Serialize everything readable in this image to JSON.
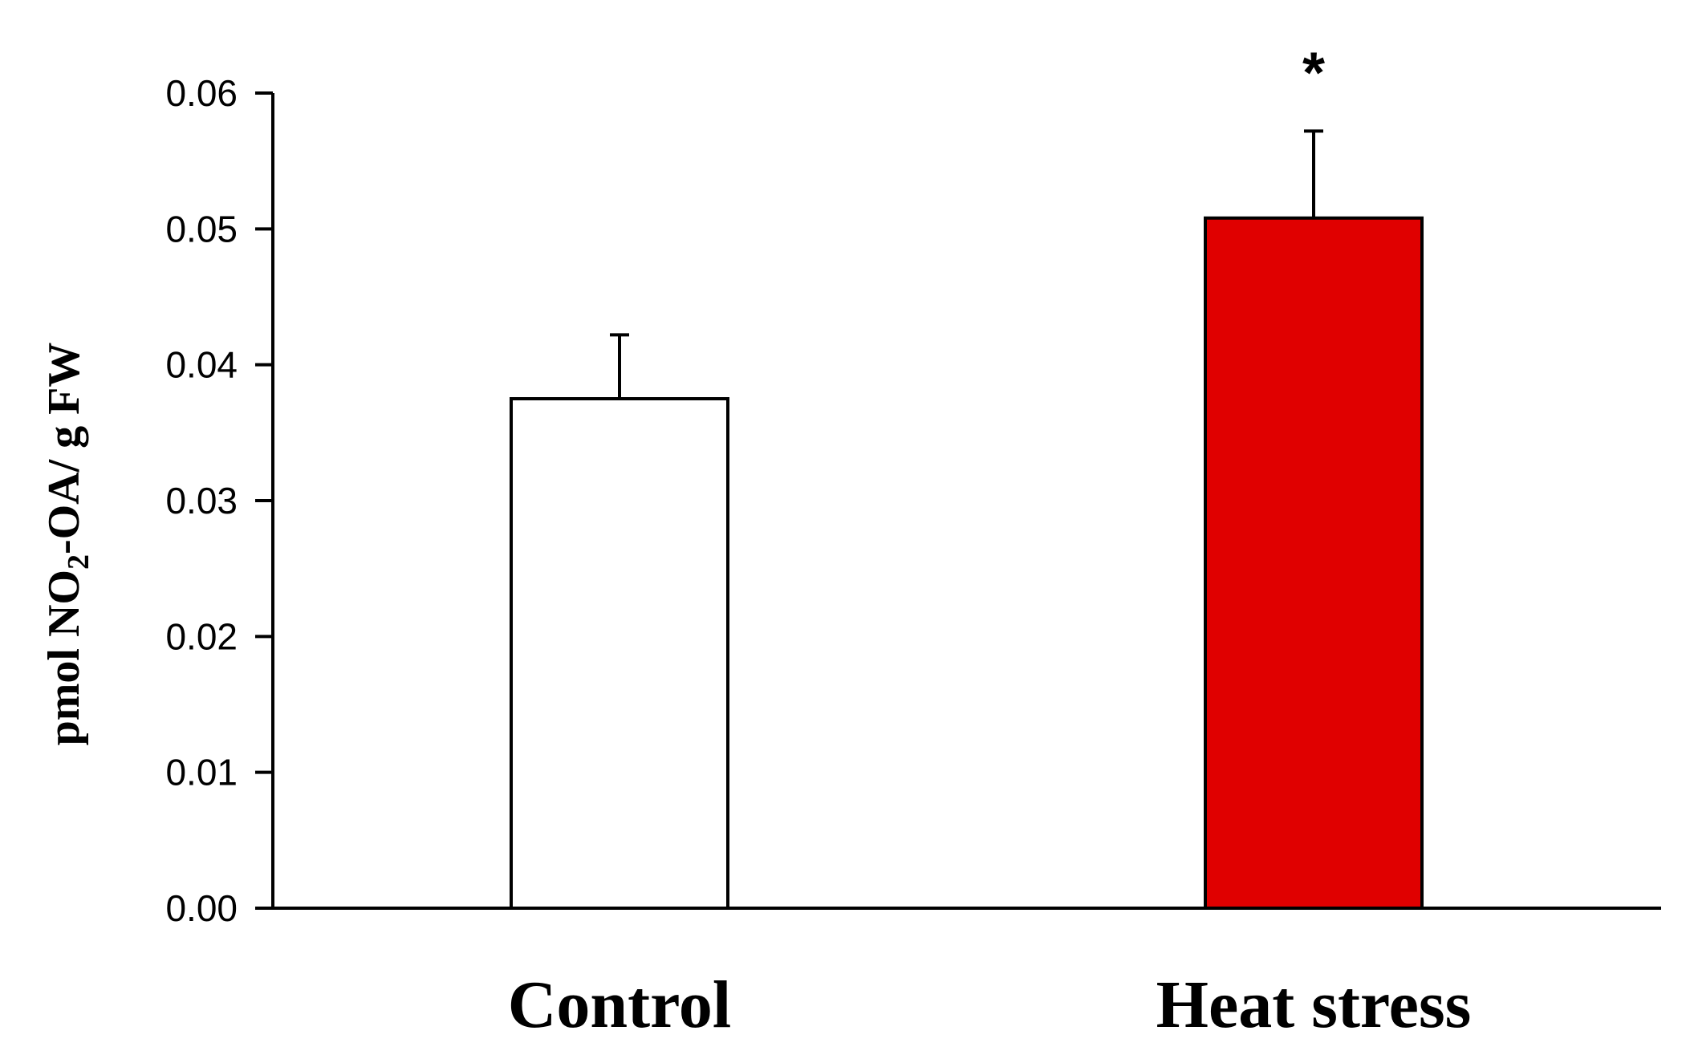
{
  "chart_data": {
    "type": "bar",
    "categories": [
      "Control",
      "Heat stress"
    ],
    "values": [
      0.0375,
      0.0508
    ],
    "error_upper": [
      0.0047,
      0.0064
    ],
    "bar_colors": [
      "#ffffff",
      "#e00000"
    ],
    "annotations": [
      "",
      "*"
    ],
    "ylabel": {
      "prefix": "pmol NO",
      "subscript": "2",
      "suffix": "-OA/ g FW"
    },
    "ylim": [
      0,
      0.06
    ],
    "yticks": [
      "0.00",
      "0.01",
      "0.02",
      "0.03",
      "0.04",
      "0.05",
      "0.06"
    ],
    "grid": false,
    "legend": "none"
  }
}
